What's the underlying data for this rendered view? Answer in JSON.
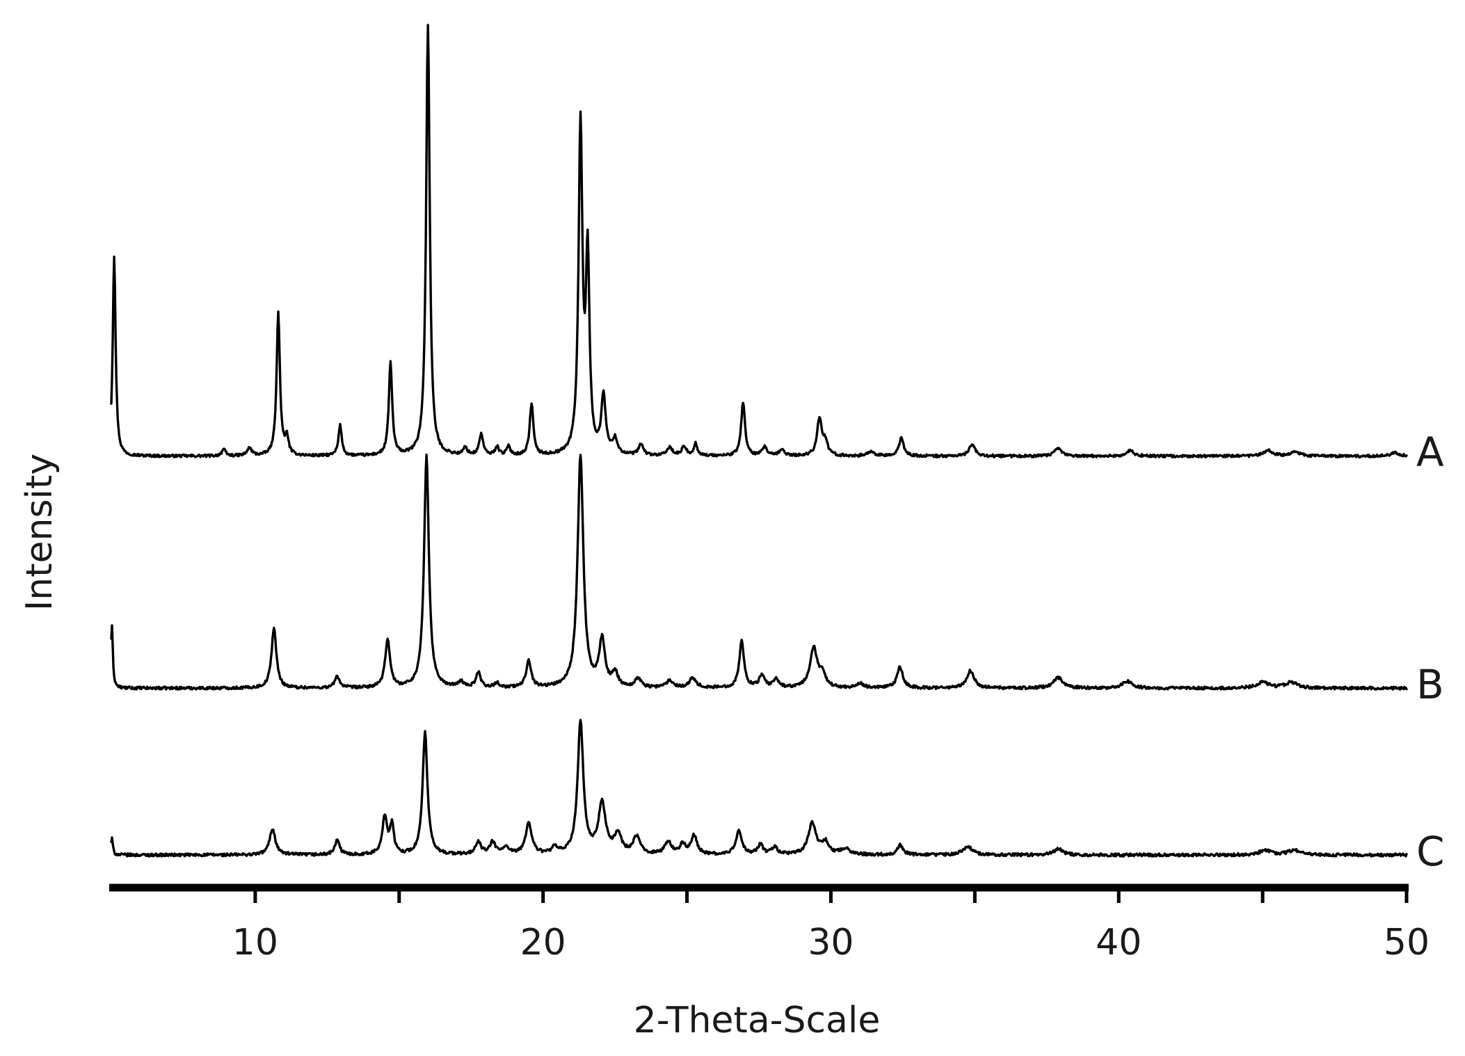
{
  "chart_data": {
    "type": "line",
    "title": "",
    "xlabel": "2-Theta-Scale",
    "ylabel": "Intensity",
    "xlim": [
      5,
      50
    ],
    "x_ticks": [
      10,
      20,
      30,
      40,
      50
    ],
    "x_minor_ticks": [
      15,
      25,
      35,
      45
    ],
    "y_ticks_shown": false,
    "grid": false,
    "legend": "none (traces labelled at right end)",
    "series": [
      {
        "name": "A",
        "baseline": 0.02,
        "peaks": [
          {
            "x": 5.1,
            "h": 0.93,
            "w": 0.06
          },
          {
            "x": 8.9,
            "h": 0.03,
            "w": 0.08
          },
          {
            "x": 9.8,
            "h": 0.035,
            "w": 0.1
          },
          {
            "x": 10.8,
            "h": 0.66,
            "w": 0.07
          },
          {
            "x": 11.1,
            "h": 0.08,
            "w": 0.07
          },
          {
            "x": 12.95,
            "h": 0.14,
            "w": 0.07
          },
          {
            "x": 14.7,
            "h": 0.43,
            "w": 0.07
          },
          {
            "x": 16.0,
            "h": 2.0,
            "w": 0.075
          },
          {
            "x": 17.3,
            "h": 0.035,
            "w": 0.08
          },
          {
            "x": 17.85,
            "h": 0.1,
            "w": 0.08
          },
          {
            "x": 18.4,
            "h": 0.04,
            "w": 0.08
          },
          {
            "x": 18.8,
            "h": 0.04,
            "w": 0.08
          },
          {
            "x": 19.6,
            "h": 0.24,
            "w": 0.075
          },
          {
            "x": 21.3,
            "h": 1.52,
            "w": 0.08
          },
          {
            "x": 21.55,
            "h": 0.9,
            "w": 0.075
          },
          {
            "x": 22.1,
            "h": 0.27,
            "w": 0.09
          },
          {
            "x": 22.5,
            "h": 0.07,
            "w": 0.1
          },
          {
            "x": 23.4,
            "h": 0.05,
            "w": 0.1
          },
          {
            "x": 24.4,
            "h": 0.04,
            "w": 0.1
          },
          {
            "x": 24.9,
            "h": 0.04,
            "w": 0.1
          },
          {
            "x": 25.3,
            "h": 0.055,
            "w": 0.08
          },
          {
            "x": 26.95,
            "h": 0.25,
            "w": 0.08
          },
          {
            "x": 27.7,
            "h": 0.04,
            "w": 0.1
          },
          {
            "x": 28.3,
            "h": 0.03,
            "w": 0.1
          },
          {
            "x": 29.6,
            "h": 0.17,
            "w": 0.1
          },
          {
            "x": 29.8,
            "h": 0.06,
            "w": 0.1
          },
          {
            "x": 31.4,
            "h": 0.02,
            "w": 0.15
          },
          {
            "x": 32.45,
            "h": 0.09,
            "w": 0.09
          },
          {
            "x": 34.9,
            "h": 0.055,
            "w": 0.12
          },
          {
            "x": 37.9,
            "h": 0.035,
            "w": 0.15
          },
          {
            "x": 40.4,
            "h": 0.025,
            "w": 0.15
          },
          {
            "x": 45.2,
            "h": 0.025,
            "w": 0.2
          },
          {
            "x": 46.1,
            "h": 0.02,
            "w": 0.2
          },
          {
            "x": 49.6,
            "h": 0.015,
            "w": 0.2
          }
        ]
      },
      {
        "name": "B",
        "baseline": 0.02,
        "peaks": [
          {
            "x": 5.02,
            "h": 0.27,
            "w": 0.04
          },
          {
            "x": 10.65,
            "h": 0.26,
            "w": 0.1
          },
          {
            "x": 12.85,
            "h": 0.05,
            "w": 0.1
          },
          {
            "x": 14.6,
            "h": 0.21,
            "w": 0.1
          },
          {
            "x": 15.95,
            "h": 1.0,
            "w": 0.1
          },
          {
            "x": 17.15,
            "h": 0.025,
            "w": 0.1
          },
          {
            "x": 17.75,
            "h": 0.065,
            "w": 0.1
          },
          {
            "x": 18.4,
            "h": 0.02,
            "w": 0.1
          },
          {
            "x": 19.5,
            "h": 0.12,
            "w": 0.1
          },
          {
            "x": 21.3,
            "h": 1.0,
            "w": 0.12
          },
          {
            "x": 22.05,
            "h": 0.2,
            "w": 0.12
          },
          {
            "x": 22.5,
            "h": 0.06,
            "w": 0.12
          },
          {
            "x": 23.3,
            "h": 0.04,
            "w": 0.12
          },
          {
            "x": 24.4,
            "h": 0.03,
            "w": 0.15
          },
          {
            "x": 25.2,
            "h": 0.04,
            "w": 0.15
          },
          {
            "x": 26.9,
            "h": 0.2,
            "w": 0.1
          },
          {
            "x": 27.6,
            "h": 0.05,
            "w": 0.12
          },
          {
            "x": 28.1,
            "h": 0.035,
            "w": 0.12
          },
          {
            "x": 29.4,
            "h": 0.17,
            "w": 0.15
          },
          {
            "x": 29.7,
            "h": 0.06,
            "w": 0.12
          },
          {
            "x": 31.0,
            "h": 0.02,
            "w": 0.15
          },
          {
            "x": 32.4,
            "h": 0.09,
            "w": 0.12
          },
          {
            "x": 34.85,
            "h": 0.075,
            "w": 0.15
          },
          {
            "x": 37.9,
            "h": 0.045,
            "w": 0.2
          },
          {
            "x": 40.3,
            "h": 0.03,
            "w": 0.2
          },
          {
            "x": 45.0,
            "h": 0.025,
            "w": 0.25
          },
          {
            "x": 46.0,
            "h": 0.025,
            "w": 0.25
          }
        ]
      },
      {
        "name": "C",
        "baseline": 0.02,
        "peaks": [
          {
            "x": 5.02,
            "h": 0.07,
            "w": 0.04
          },
          {
            "x": 10.6,
            "h": 0.11,
            "w": 0.12
          },
          {
            "x": 12.85,
            "h": 0.06,
            "w": 0.1
          },
          {
            "x": 14.5,
            "h": 0.16,
            "w": 0.1
          },
          {
            "x": 14.75,
            "h": 0.12,
            "w": 0.08
          },
          {
            "x": 15.9,
            "h": 0.51,
            "w": 0.1
          },
          {
            "x": 17.75,
            "h": 0.05,
            "w": 0.12
          },
          {
            "x": 18.25,
            "h": 0.05,
            "w": 0.12
          },
          {
            "x": 18.7,
            "h": 0.03,
            "w": 0.12
          },
          {
            "x": 19.5,
            "h": 0.13,
            "w": 0.13
          },
          {
            "x": 20.4,
            "h": 0.025,
            "w": 0.12
          },
          {
            "x": 21.3,
            "h": 0.55,
            "w": 0.12
          },
          {
            "x": 22.05,
            "h": 0.21,
            "w": 0.15
          },
          {
            "x": 22.6,
            "h": 0.08,
            "w": 0.15
          },
          {
            "x": 23.25,
            "h": 0.07,
            "w": 0.15
          },
          {
            "x": 24.35,
            "h": 0.05,
            "w": 0.15
          },
          {
            "x": 24.85,
            "h": 0.04,
            "w": 0.12
          },
          {
            "x": 25.25,
            "h": 0.08,
            "w": 0.12
          },
          {
            "x": 26.8,
            "h": 0.1,
            "w": 0.12
          },
          {
            "x": 27.55,
            "h": 0.04,
            "w": 0.12
          },
          {
            "x": 28.05,
            "h": 0.03,
            "w": 0.12
          },
          {
            "x": 29.35,
            "h": 0.13,
            "w": 0.16
          },
          {
            "x": 29.8,
            "h": 0.05,
            "w": 0.15
          },
          {
            "x": 30.5,
            "h": 0.025,
            "w": 0.2
          },
          {
            "x": 32.4,
            "h": 0.04,
            "w": 0.12
          },
          {
            "x": 34.75,
            "h": 0.035,
            "w": 0.2
          },
          {
            "x": 37.9,
            "h": 0.025,
            "w": 0.2
          },
          {
            "x": 45.1,
            "h": 0.02,
            "w": 0.25
          },
          {
            "x": 46.1,
            "h": 0.02,
            "w": 0.25
          }
        ]
      }
    ]
  }
}
